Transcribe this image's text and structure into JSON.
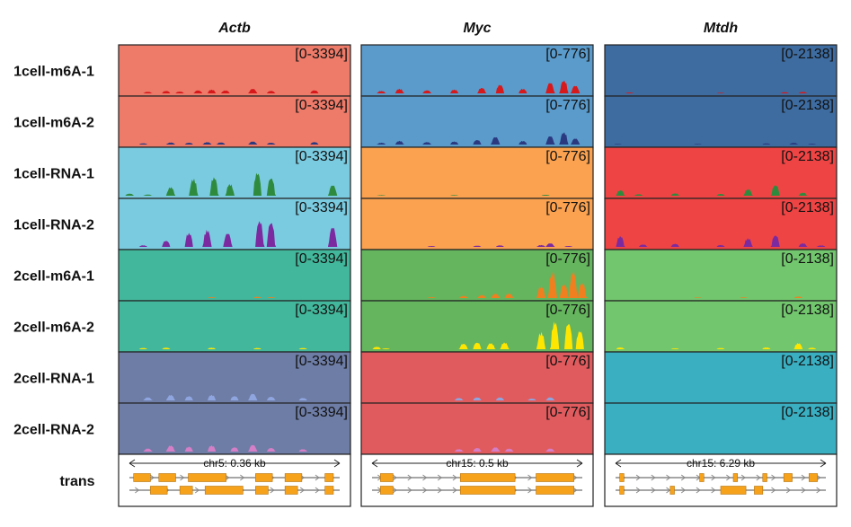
{
  "chart_data": {
    "type": "area",
    "genes": [
      {
        "name": "Actb",
        "range": "[0-3394]",
        "locus": "chr5: 0.36 kb"
      },
      {
        "name": "Myc",
        "range": "[0-776]",
        "locus": "chr15: 0.5 kb"
      },
      {
        "name": "Mtdh",
        "range": "[0-2138]",
        "locus": "chr15: 6.29 kb"
      }
    ],
    "rows": [
      "1cell-m6A-1",
      "1cell-m6A-2",
      "1cell-RNA-1",
      "1cell-RNA-2",
      "2cell-m6A-1",
      "2cell-m6A-2",
      "2cell-RNA-1",
      "2cell-RNA-2"
    ],
    "transcript_row_label": "trans",
    "background_colors": [
      [
        "#EE7B6A",
        "#5A9BCB",
        "#3E6CA0"
      ],
      [
        "#EE7B6A",
        "#5A9BCB",
        "#3E6CA0"
      ],
      [
        "#7BCBE0",
        "#FBA250",
        "#EF4444"
      ],
      [
        "#7BCBE0",
        "#FBA250",
        "#EF4444"
      ],
      [
        "#43B79B",
        "#65B55E",
        "#72C66E"
      ],
      [
        "#43B79B",
        "#65B55E",
        "#72C66E"
      ],
      [
        "#6E7DA6",
        "#E05B5E",
        "#3AAFC2"
      ],
      [
        "#6E7DA6",
        "#E05B5E",
        "#3AAFC2"
      ]
    ],
    "signal_colors": [
      "#D7191C",
      "#2B3A80",
      "#2E8B3E",
      "#7B2AA0",
      "#F07F20",
      "#FFE600",
      "#8FA5E0",
      "#D47FC7"
    ],
    "coverage": {
      "Actb": [
        [
          [
            0.12,
            0.05
          ],
          [
            0.2,
            0.08
          ],
          [
            0.26,
            0.06
          ],
          [
            0.34,
            0.1
          ],
          [
            0.4,
            0.12
          ],
          [
            0.46,
            0.1
          ],
          [
            0.58,
            0.15
          ],
          [
            0.66,
            0.08
          ],
          [
            0.85,
            0.1
          ]
        ],
        [
          [
            0.1,
            0.04
          ],
          [
            0.22,
            0.07
          ],
          [
            0.3,
            0.06
          ],
          [
            0.38,
            0.08
          ],
          [
            0.44,
            0.07
          ],
          [
            0.58,
            0.1
          ],
          [
            0.66,
            0.06
          ],
          [
            0.85,
            0.08
          ]
        ],
        [
          [
            0.04,
            0.07
          ],
          [
            0.12,
            0.04
          ],
          [
            0.22,
            0.28
          ],
          [
            0.32,
            0.55
          ],
          [
            0.41,
            0.6
          ],
          [
            0.48,
            0.38
          ],
          [
            0.6,
            0.75
          ],
          [
            0.66,
            0.58
          ],
          [
            0.93,
            0.35
          ]
        ],
        [
          [
            0.1,
            0.05
          ],
          [
            0.2,
            0.2
          ],
          [
            0.3,
            0.45
          ],
          [
            0.38,
            0.55
          ],
          [
            0.47,
            0.45
          ],
          [
            0.61,
            0.85
          ],
          [
            0.66,
            0.8
          ],
          [
            0.93,
            0.65
          ]
        ],
        [
          [
            0.4,
            0.03
          ],
          [
            0.6,
            0.04
          ],
          [
            0.66,
            0.03
          ]
        ],
        [
          [
            0.1,
            0.04
          ],
          [
            0.2,
            0.05
          ],
          [
            0.4,
            0.05
          ],
          [
            0.6,
            0.04
          ],
          [
            0.8,
            0.04
          ]
        ],
        [
          [
            0.12,
            0.1
          ],
          [
            0.22,
            0.18
          ],
          [
            0.3,
            0.14
          ],
          [
            0.4,
            0.18
          ],
          [
            0.5,
            0.14
          ],
          [
            0.58,
            0.22
          ],
          [
            0.66,
            0.12
          ],
          [
            0.8,
            0.08
          ]
        ],
        [
          [
            0.12,
            0.1
          ],
          [
            0.22,
            0.2
          ],
          [
            0.3,
            0.16
          ],
          [
            0.4,
            0.2
          ],
          [
            0.5,
            0.14
          ],
          [
            0.58,
            0.22
          ],
          [
            0.66,
            0.12
          ],
          [
            0.8,
            0.08
          ]
        ]
      ],
      "Myc": [
        [
          [
            0.08,
            0.08
          ],
          [
            0.16,
            0.15
          ],
          [
            0.28,
            0.1
          ],
          [
            0.4,
            0.12
          ],
          [
            0.52,
            0.18
          ],
          [
            0.6,
            0.28
          ],
          [
            0.7,
            0.15
          ],
          [
            0.82,
            0.35
          ],
          [
            0.88,
            0.42
          ],
          [
            0.93,
            0.25
          ]
        ],
        [
          [
            0.08,
            0.06
          ],
          [
            0.16,
            0.12
          ],
          [
            0.28,
            0.08
          ],
          [
            0.4,
            0.1
          ],
          [
            0.5,
            0.15
          ],
          [
            0.58,
            0.25
          ],
          [
            0.7,
            0.12
          ],
          [
            0.82,
            0.28
          ],
          [
            0.88,
            0.4
          ],
          [
            0.93,
            0.2
          ]
        ],
        [
          [
            0.08,
            0.02
          ],
          [
            0.4,
            0.02
          ],
          [
            0.8,
            0.03
          ]
        ],
        [
          [
            0.3,
            0.03
          ],
          [
            0.5,
            0.04
          ],
          [
            0.6,
            0.05
          ],
          [
            0.78,
            0.06
          ],
          [
            0.82,
            0.12
          ],
          [
            0.9,
            0.03
          ]
        ],
        [
          [
            0.3,
            0.03
          ],
          [
            0.44,
            0.07
          ],
          [
            0.52,
            0.1
          ],
          [
            0.58,
            0.14
          ],
          [
            0.64,
            0.15
          ],
          [
            0.78,
            0.4
          ],
          [
            0.83,
            0.85
          ],
          [
            0.88,
            0.45
          ],
          [
            0.92,
            0.88
          ],
          [
            0.96,
            0.5
          ]
        ],
        [
          [
            0.06,
            0.08
          ],
          [
            0.1,
            0.03
          ],
          [
            0.44,
            0.18
          ],
          [
            0.5,
            0.22
          ],
          [
            0.56,
            0.2
          ],
          [
            0.62,
            0.22
          ],
          [
            0.78,
            0.55
          ],
          [
            0.84,
            0.9
          ],
          [
            0.9,
            0.85
          ],
          [
            0.95,
            0.6
          ]
        ],
        [
          [
            0.42,
            0.08
          ],
          [
            0.5,
            0.1
          ],
          [
            0.6,
            0.1
          ],
          [
            0.74,
            0.06
          ],
          [
            0.82,
            0.1
          ]
        ],
        [
          [
            0.42,
            0.08
          ],
          [
            0.5,
            0.12
          ],
          [
            0.58,
            0.14
          ],
          [
            0.64,
            0.1
          ],
          [
            0.82,
            0.1
          ]
        ]
      ],
      "Mtdh": [
        [
          [
            0.1,
            0.03
          ],
          [
            0.5,
            0.02
          ],
          [
            0.78,
            0.04
          ],
          [
            0.86,
            0.05
          ]
        ],
        [
          [
            0.05,
            0.02
          ],
          [
            0.4,
            0.02
          ],
          [
            0.7,
            0.04
          ],
          [
            0.82,
            0.06
          ],
          [
            0.9,
            0.03
          ]
        ],
        [
          [
            0.06,
            0.18
          ],
          [
            0.14,
            0.05
          ],
          [
            0.3,
            0.08
          ],
          [
            0.5,
            0.06
          ],
          [
            0.62,
            0.22
          ],
          [
            0.74,
            0.35
          ],
          [
            0.86,
            0.1
          ]
        ],
        [
          [
            0.06,
            0.35
          ],
          [
            0.16,
            0.08
          ],
          [
            0.3,
            0.1
          ],
          [
            0.5,
            0.06
          ],
          [
            0.62,
            0.28
          ],
          [
            0.74,
            0.38
          ],
          [
            0.86,
            0.12
          ],
          [
            0.94,
            0.05
          ]
        ],
        [
          [
            0.4,
            0.02
          ],
          [
            0.6,
            0.02
          ],
          [
            0.84,
            0.05
          ]
        ],
        [
          [
            0.06,
            0.06
          ],
          [
            0.3,
            0.03
          ],
          [
            0.5,
            0.04
          ],
          [
            0.7,
            0.06
          ],
          [
            0.84,
            0.2
          ],
          [
            0.9,
            0.05
          ]
        ],
        [],
        []
      ]
    }
  }
}
